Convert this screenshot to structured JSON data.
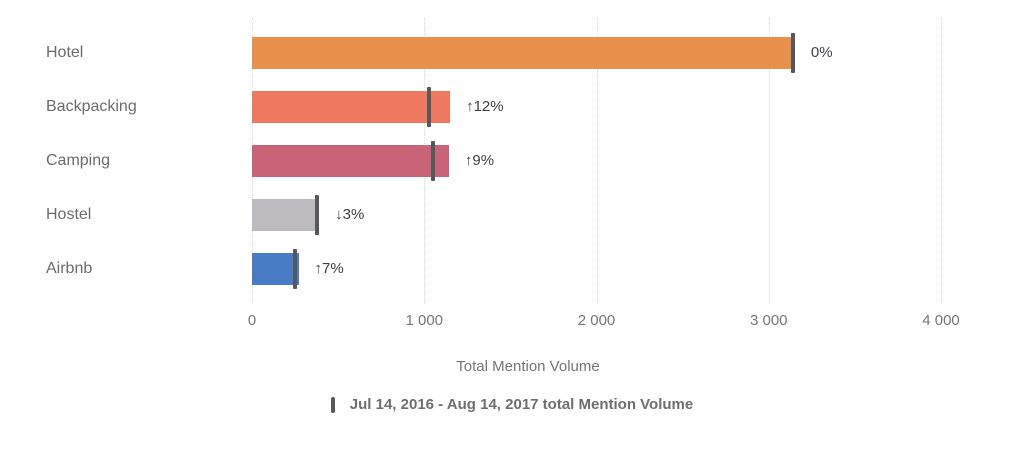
{
  "chart_data": {
    "type": "bar",
    "orientation": "horizontal",
    "xlabel": "Total Mention Volume",
    "xlim": [
      0,
      4000
    ],
    "x_ticks": [
      "0",
      "1 000",
      "2 000",
      "3 000",
      "4 000"
    ],
    "x_tick_values": [
      0,
      1000,
      2000,
      3000,
      4000
    ],
    "grid": "vertical-dotted",
    "categories": [
      "Hotel",
      "Backpacking",
      "Camping",
      "Hostel",
      "Airbnb"
    ],
    "series": [
      {
        "name": "Total Mention Volume",
        "type": "bar",
        "values": [
          3140,
          1150,
          1143,
          365,
          270
        ],
        "colors": [
          "#E8914C",
          "#ED7960",
          "#C96377",
          "#BDBAC0",
          "#4A7BC5"
        ]
      },
      {
        "name": "Jul 14, 2016 - Aug 14, 2017 total Mention Volume",
        "type": "tick-marker",
        "values": [
          3140,
          1027,
          1049,
          378,
          252
        ],
        "color": "#58585A"
      }
    ],
    "change_labels": [
      "0%",
      "↑12%",
      "↑9%",
      "↓3%",
      "↑7%"
    ],
    "legend": {
      "marker": "vertical-tick",
      "label": "Jul 14, 2016 - Aug 14, 2017 total Mention Volume",
      "marker_color": "#58585A"
    }
  }
}
